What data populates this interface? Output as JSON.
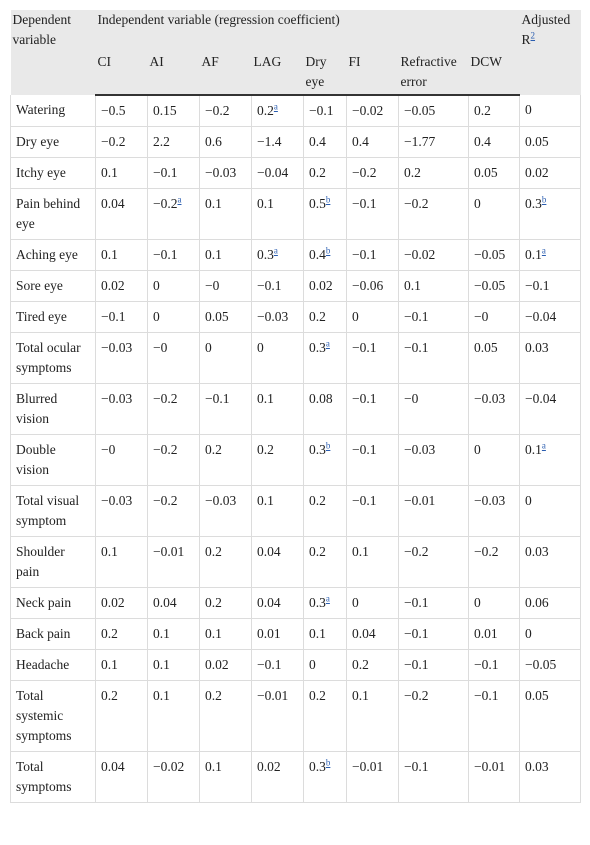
{
  "table": {
    "header": {
      "dependent": "Dependent variable",
      "independent": "Independent variable (regression coefficient)",
      "adjusted": {
        "text": "Adjusted R",
        "sup": "2"
      },
      "columns": [
        "CI",
        "AI",
        "AF",
        "LAG",
        "Dry eye",
        "FI",
        "Refractive error",
        "DCW"
      ]
    },
    "rows": [
      {
        "label": "Watering",
        "cells": [
          "−0.5",
          "0.15",
          "−0.2",
          {
            "text": "0.2",
            "sup": "a"
          },
          "−0.1",
          "−0.02",
          "−0.05",
          "0.2",
          "0"
        ]
      },
      {
        "label": "Dry eye",
        "cells": [
          "−0.2",
          "2.2",
          "0.6",
          "−1.4",
          "0.4",
          "0.4",
          "−1.77",
          "0.4",
          "0.05"
        ]
      },
      {
        "label": "Itchy eye",
        "cells": [
          "0.1",
          "−0.1",
          "−0.03",
          "−0.04",
          "0.2",
          "−0.2",
          "0.2",
          "0.05",
          "0.02"
        ]
      },
      {
        "label": "Pain behind eye",
        "cells": [
          "0.04",
          {
            "text": "−0.2",
            "sup": "a"
          },
          "0.1",
          "0.1",
          {
            "text": "0.5",
            "sup": "b"
          },
          "−0.1",
          "−0.2",
          "0",
          {
            "text": "0.3",
            "sup": "b"
          }
        ]
      },
      {
        "label": "Aching eye",
        "cells": [
          "0.1",
          "−0.1",
          "0.1",
          {
            "text": "0.3",
            "sup": "a"
          },
          {
            "text": "0.4",
            "sup": "b"
          },
          "−0.1",
          "−0.02",
          "−0.05",
          {
            "text": "0.1",
            "sup": "a"
          }
        ]
      },
      {
        "label": "Sore eye",
        "cells": [
          "0.02",
          "0",
          "−0",
          "−0.1",
          "0.02",
          "−0.06",
          "0.1",
          "−0.05",
          "−0.1"
        ]
      },
      {
        "label": "Tired eye",
        "cells": [
          "−0.1",
          "0",
          "0.05",
          "−0.03",
          "0.2",
          "0",
          "−0.1",
          "−0",
          "−0.04"
        ]
      },
      {
        "label": "Total ocular symptoms",
        "cells": [
          "−0.03",
          "−0",
          "0",
          "0",
          {
            "text": "0.3",
            "sup": "a"
          },
          "−0.1",
          "−0.1",
          "0.05",
          "0.03"
        ]
      },
      {
        "label": "Blurred vision",
        "cells": [
          "−0.03",
          "−0.2",
          "−0.1",
          "0.1",
          "0.08",
          "−0.1",
          "−0",
          "−0.03",
          "−0.04"
        ]
      },
      {
        "label": "Double vision",
        "cells": [
          "−0",
          "−0.2",
          "0.2",
          "0.2",
          {
            "text": "0.3",
            "sup": "b"
          },
          "−0.1",
          "−0.03",
          "0",
          {
            "text": "0.1",
            "sup": "a"
          }
        ]
      },
      {
        "label": "Total visual symptom",
        "cells": [
          "−0.03",
          "−0.2",
          "−0.03",
          "0.1",
          "0.2",
          "−0.1",
          "−0.01",
          "−0.03",
          "0"
        ]
      },
      {
        "label": "Shoulder pain",
        "cells": [
          "0.1",
          "−0.01",
          "0.2",
          "0.04",
          "0.2",
          "0.1",
          "−0.2",
          "−0.2",
          "0.03"
        ]
      },
      {
        "label": "Neck pain",
        "cells": [
          "0.02",
          "0.04",
          "0.2",
          "0.04",
          {
            "text": "0.3",
            "sup": "a"
          },
          "0",
          "−0.1",
          "0",
          "0.06"
        ]
      },
      {
        "label": "Back pain",
        "cells": [
          "0.2",
          "0.1",
          "0.1",
          "0.01",
          "0.1",
          "0.04",
          "−0.1",
          "0.01",
          "0"
        ]
      },
      {
        "label": "Headache",
        "cells": [
          "0.1",
          "0.1",
          "0.02",
          "−0.1",
          "0",
          "0.2",
          "−0.1",
          "−0.1",
          "−0.05"
        ]
      },
      {
        "label": "Total systemic symptoms",
        "cells": [
          "0.2",
          "0.1",
          "0.2",
          "−0.01",
          "0.2",
          "0.1",
          "−0.2",
          "−0.1",
          "0.05"
        ]
      },
      {
        "label": "Total symptoms",
        "cells": [
          "0.04",
          "−0.02",
          "0.1",
          "0.02",
          {
            "text": "0.3",
            "sup": "b"
          },
          "−0.01",
          "−0.1",
          "−0.01",
          "0.03"
        ]
      }
    ]
  }
}
